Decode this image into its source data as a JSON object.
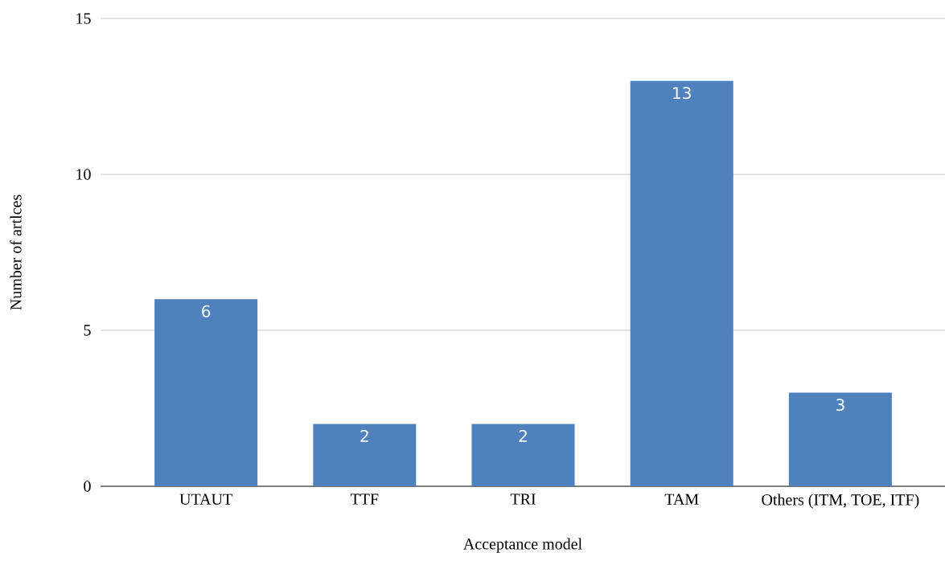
{
  "chart_data": {
    "type": "bar",
    "xlabel": "Acceptance model",
    "ylabel": "Number of artlces",
    "categories": [
      "UTAUT",
      "TTF",
      "TRI",
      "TAM",
      "Others (ITM, TOE, ITF)"
    ],
    "values": [
      6,
      2,
      2,
      13,
      3
    ],
    "color": "#4f81bd",
    "ylim": [
      0,
      15
    ],
    "yticks": [
      0,
      5,
      10,
      15
    ],
    "grid": "y",
    "data_labels": true
  }
}
